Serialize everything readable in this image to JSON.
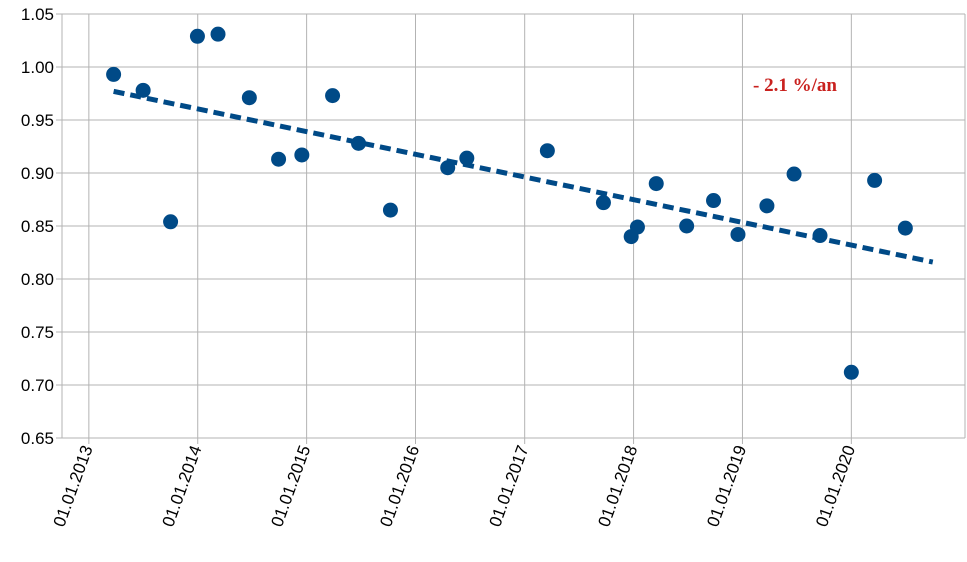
{
  "chart_data": {
    "type": "scatter",
    "title": "",
    "xlabel": "",
    "ylabel": "",
    "x_ticks": [
      "01.01.2013",
      "01.01.2014",
      "01.01.2015",
      "01.01.2016",
      "01.01.2017",
      "01.01.2018",
      "01.01.2019",
      "01.01.2020"
    ],
    "y_ticks": [
      "0.65",
      "0.70",
      "0.75",
      "0.80",
      "0.85",
      "0.90",
      "0.95",
      "1.00",
      "1.05"
    ],
    "xlim": [
      "2012-10-03",
      "2021-01-16"
    ],
    "ylim": [
      0.65,
      1.05
    ],
    "grid": true,
    "legend": "none",
    "colors": {
      "points": "#004a87",
      "trend": "#004a87",
      "annotation": "#c9211e",
      "grid": "#b3b3b3"
    },
    "series": [
      {
        "points": [
          {
            "x": "2013-03-25",
            "y": 0.993
          },
          {
            "x": "2013-07-02",
            "y": 0.978
          },
          {
            "x": "2013-10-02",
            "y": 0.854
          },
          {
            "x": "2013-12-31",
            "y": 1.029
          },
          {
            "x": "2014-03-10",
            "y": 1.031
          },
          {
            "x": "2014-06-23",
            "y": 0.971
          },
          {
            "x": "2014-09-29",
            "y": 0.913
          },
          {
            "x": "2014-12-16",
            "y": 0.917
          },
          {
            "x": "2015-03-29",
            "y": 0.973
          },
          {
            "x": "2015-06-24",
            "y": 0.928
          },
          {
            "x": "2015-10-09",
            "y": 0.865
          },
          {
            "x": "2016-04-18",
            "y": 0.905
          },
          {
            "x": "2016-06-21",
            "y": 0.914
          },
          {
            "x": "2017-03-18",
            "y": 0.921
          },
          {
            "x": "2017-09-22",
            "y": 0.872
          },
          {
            "x": "2017-12-24",
            "y": 0.84
          },
          {
            "x": "2018-01-14",
            "y": 0.849
          },
          {
            "x": "2018-03-18",
            "y": 0.89
          },
          {
            "x": "2018-06-28",
            "y": 0.85
          },
          {
            "x": "2018-09-26",
            "y": 0.874
          },
          {
            "x": "2018-12-17",
            "y": 0.842
          },
          {
            "x": "2019-03-24",
            "y": 0.869
          },
          {
            "x": "2019-06-23",
            "y": 0.899
          },
          {
            "x": "2019-09-18",
            "y": 0.841
          },
          {
            "x": "2020-01-01",
            "y": 0.712
          },
          {
            "x": "2020-03-19",
            "y": 0.893
          },
          {
            "x": "2020-06-30",
            "y": 0.848
          }
        ]
      }
    ],
    "trendline": {
      "type": "linear",
      "style": "dashed",
      "from": {
        "x": "2013-03-25",
        "y": 0.977
      },
      "to": {
        "x": "2020-09-30",
        "y": 0.816
      }
    },
    "annotations": [
      {
        "text": "- 2.1 %/an"
      }
    ]
  }
}
